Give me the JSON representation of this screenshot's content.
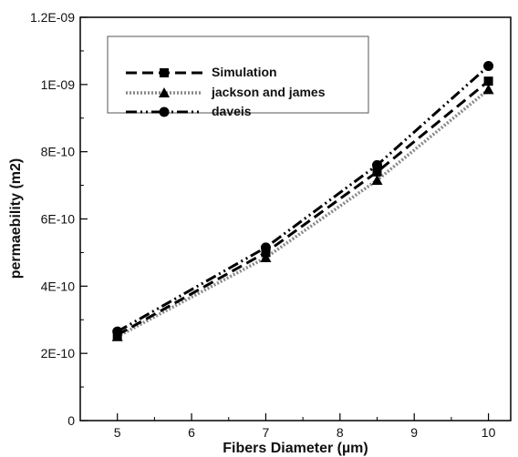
{
  "chart_data": {
    "type": "line",
    "title": "",
    "xlabel": "Fibers Diameter (µm)",
    "ylabel": "permaebility (m2)",
    "xlim": [
      4.5,
      10.3
    ],
    "ylim": [
      0,
      1.2e-09
    ],
    "xticks": [
      5,
      6,
      7,
      8,
      9,
      10
    ],
    "xtick_labels": [
      "5",
      "6",
      "7",
      "8",
      "9",
      "10"
    ],
    "yticks": [
      0,
      2e-10,
      4e-10,
      6e-10,
      8e-10,
      1e-09,
      1.2e-09
    ],
    "ytick_labels": [
      "0",
      "2E-10",
      "4E-10",
      "6E-10",
      "8E-10",
      "1E-09",
      "1.2E-09"
    ],
    "grid": false,
    "legend_position": "top-left",
    "x": [
      5,
      7,
      8.5,
      10
    ],
    "series": [
      {
        "name": "Simulation",
        "values": [
          2.55e-10,
          5e-10,
          7.4e-10,
          1.01e-09
        ],
        "marker": "square",
        "dash": "dashed",
        "color": "#000000"
      },
      {
        "name": "jackson and james",
        "values": [
          2.5e-10,
          4.85e-10,
          7.15e-10,
          9.85e-10
        ],
        "marker": "triangle",
        "dash": "dotted",
        "color": "#888888"
      },
      {
        "name": "daveis",
        "values": [
          2.65e-10,
          5.15e-10,
          7.6e-10,
          1.055e-09
        ],
        "marker": "circle",
        "dash": "dash-dot-dot",
        "color": "#000000"
      }
    ]
  }
}
